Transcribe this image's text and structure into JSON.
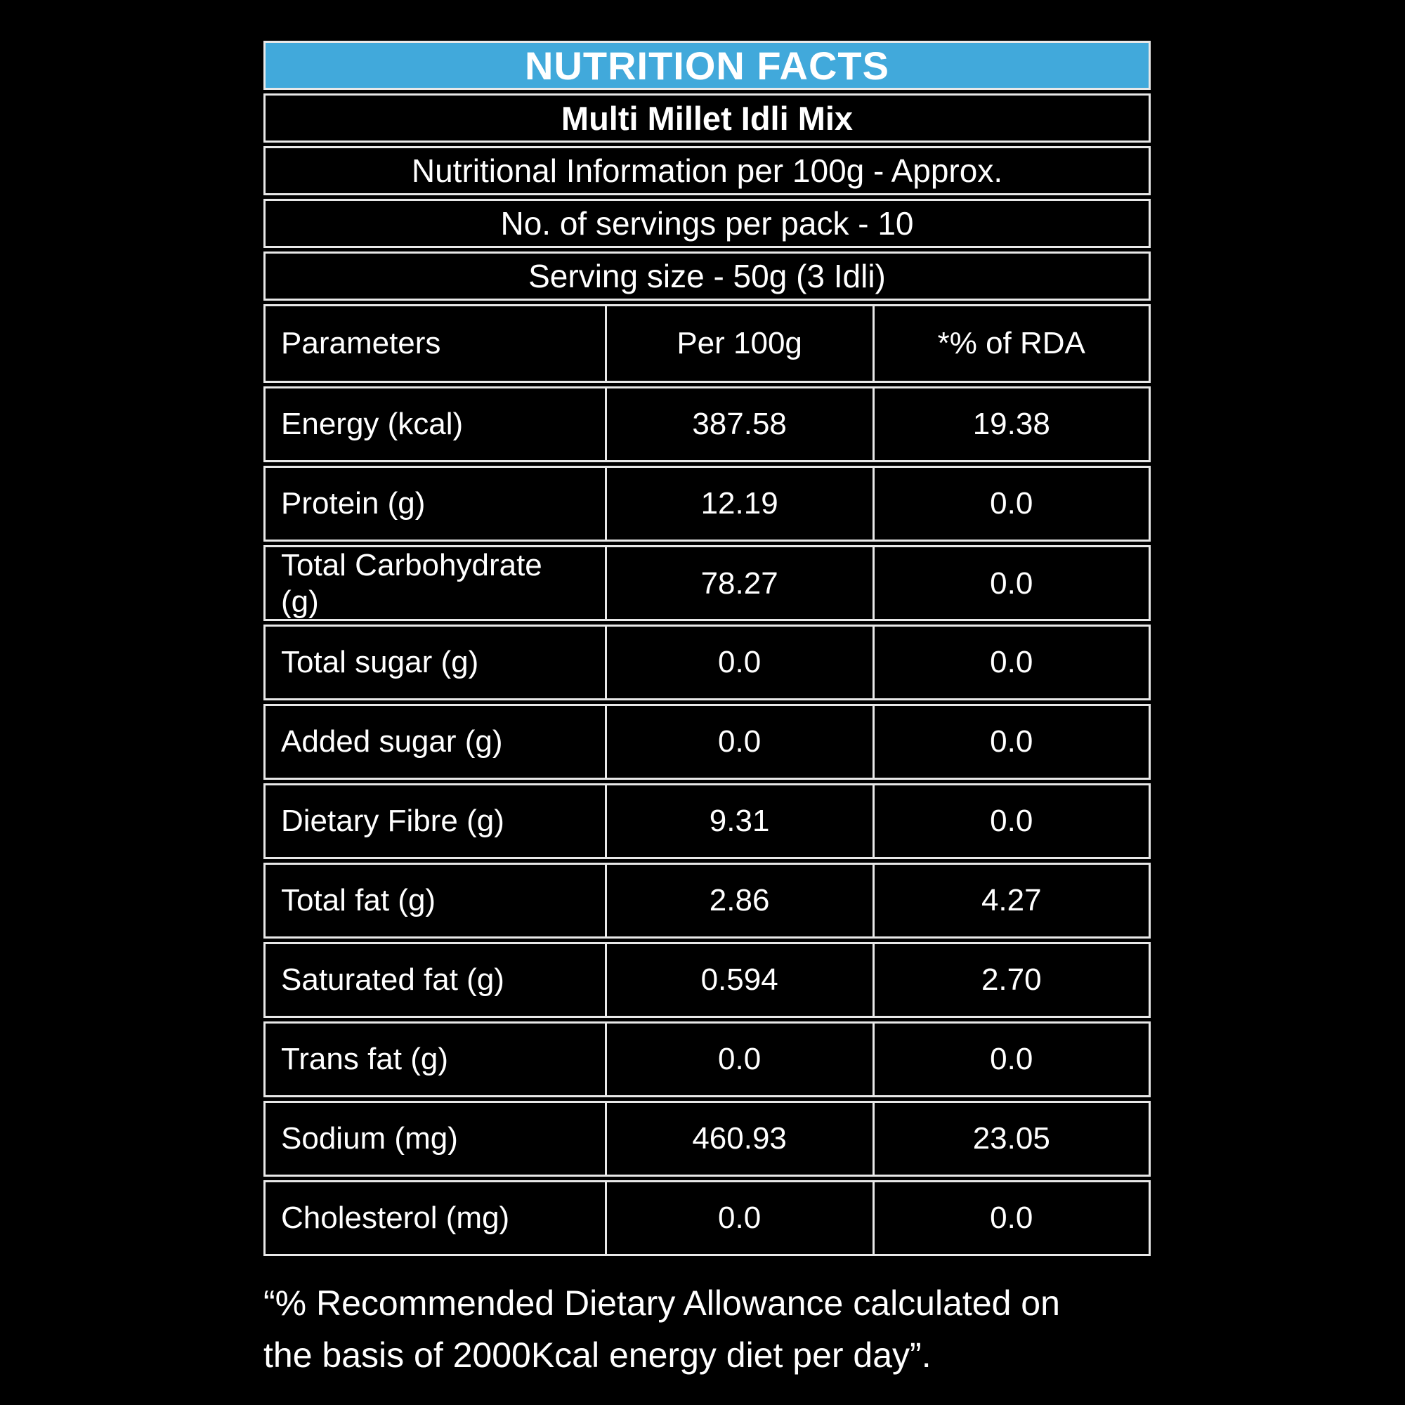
{
  "colors": {
    "background": "#000000",
    "accent_blue": "#41a9db",
    "border": "#e8e8e8",
    "text": "#ffffff"
  },
  "header": {
    "title": "NUTRITION FACTS",
    "product_name": "Multi Millet Idli Mix"
  },
  "info_rows": [
    "Nutritional Information per 100g - Approx.",
    "No. of servings per pack - 10",
    "Serving size - 50g (3 Idli)"
  ],
  "table": {
    "columns": [
      "Parameters",
      "Per 100g",
      "*% of RDA"
    ],
    "rows": [
      {
        "parameter": "Energy (kcal)",
        "per_100g": "387.58",
        "rda_percent": "19.38"
      },
      {
        "parameter": "Protein (g)",
        "per_100g": "12.19",
        "rda_percent": "0.0"
      },
      {
        "parameter": "Total Carbohydrate (g)",
        "per_100g": "78.27",
        "rda_percent": "0.0"
      },
      {
        "parameter": "Total sugar (g)",
        "per_100g": "0.0",
        "rda_percent": "0.0"
      },
      {
        "parameter": "Added sugar (g)",
        "per_100g": "0.0",
        "rda_percent": "0.0"
      },
      {
        "parameter": "Dietary Fibre (g)",
        "per_100g": "9.31",
        "rda_percent": "0.0"
      },
      {
        "parameter": "Total fat (g)",
        "per_100g": "2.86",
        "rda_percent": "4.27"
      },
      {
        "parameter": "Saturated fat (g)",
        "per_100g": "0.594",
        "rda_percent": "2.70"
      },
      {
        "parameter": "Trans fat (g)",
        "per_100g": "0.0",
        "rda_percent": "0.0"
      },
      {
        "parameter": "Sodium (mg)",
        "per_100g": "460.93",
        "rda_percent": "23.05"
      },
      {
        "parameter": "Cholesterol (mg)",
        "per_100g": "0.0",
        "rda_percent": "0.0"
      }
    ]
  },
  "footnote": {
    "lines": [
      "“% Recommended Dietary Allowance calculated on",
      "the basis of 2000Kcal energy diet per day”."
    ]
  }
}
